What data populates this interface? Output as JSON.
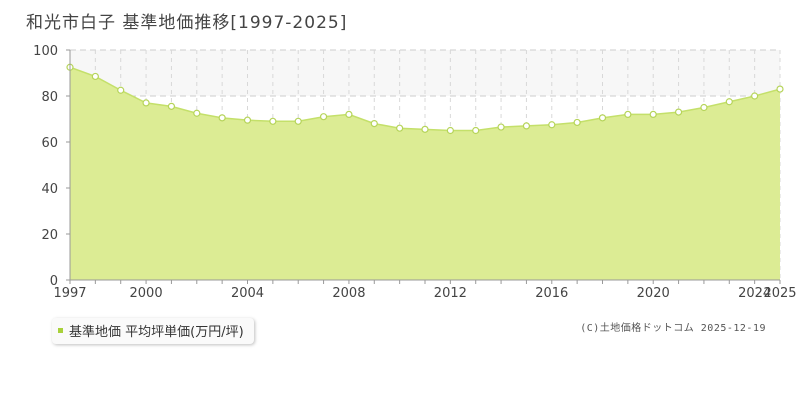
{
  "title": "和光市白子  基準地価推移[1997-2025]",
  "legend_label": "基準地価 平均坪単価(万円/坪)",
  "credit": "(C)土地価格ドットコム 2025-12-19",
  "colors": {
    "fill": "#dcec94",
    "line": "#c4e06a",
    "marker_stroke": "#b6d45a",
    "legend_swatch": "#a8d13a"
  },
  "chart_data": {
    "type": "area",
    "title": "和光市白子  基準地価推移[1997-2025]",
    "xlabel": "",
    "ylabel": "",
    "xlim": [
      1997,
      2025
    ],
    "ylim": [
      0,
      100
    ],
    "yticks": [
      0,
      20,
      40,
      60,
      80,
      100
    ],
    "xtick_labels": [
      "1997",
      "2000",
      "2004",
      "2008",
      "2012",
      "2016",
      "2020",
      "2024",
      "2025"
    ],
    "grid": true,
    "legend": "bottom-left",
    "series": [
      {
        "name": "基準地価 平均坪単価(万円/坪)",
        "x": [
          1997,
          1998,
          1999,
          2000,
          2001,
          2002,
          2003,
          2004,
          2005,
          2006,
          2007,
          2008,
          2009,
          2010,
          2011,
          2012,
          2013,
          2014,
          2015,
          2016,
          2017,
          2018,
          2019,
          2020,
          2021,
          2022,
          2023,
          2024,
          2025
        ],
        "values": [
          92.5,
          88.5,
          82.5,
          77,
          75.5,
          72.5,
          70.5,
          69.5,
          69,
          69,
          71,
          72,
          68,
          66,
          65.5,
          65,
          65,
          66.5,
          67,
          67.5,
          68.5,
          70.5,
          72,
          72,
          73,
          75,
          77.5,
          80,
          83
        ]
      }
    ]
  }
}
